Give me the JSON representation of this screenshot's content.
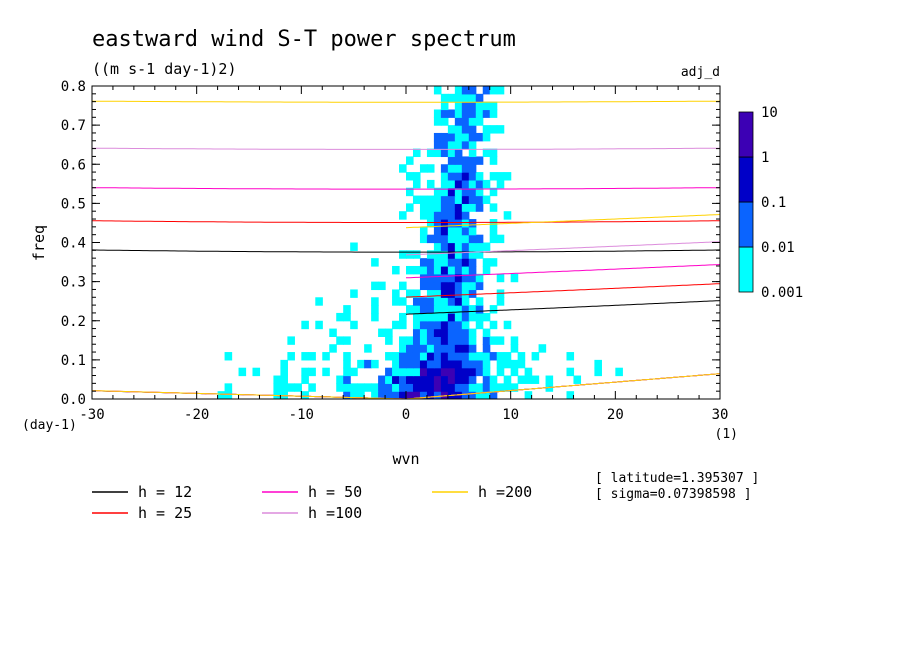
{
  "chart_data": {
    "type": "heatmap",
    "title": "eastward wind S-T power spectrum",
    "units": "((m s-1 day-1)2)",
    "run_label": "adj_d",
    "xlabel": "wvn",
    "ylabel": "freq",
    "x_unit": "(1)",
    "y_unit": "(day-1)",
    "xlim": [
      -30,
      30
    ],
    "ylim": [
      0,
      0.8
    ],
    "x_ticks": [
      -30,
      -20,
      -10,
      0,
      10,
      20,
      30
    ],
    "y_ticks": [
      0.0,
      0.1,
      0.2,
      0.3,
      0.4,
      0.5,
      0.6,
      0.7,
      0.8
    ],
    "x_tick_labels": [
      "-30",
      "-20",
      "-10",
      "0",
      "10",
      "20",
      "30"
    ],
    "y_tick_labels": [
      "0.0",
      "0.1",
      "0.2",
      "0.3",
      "0.4",
      "0.5",
      "0.6",
      "0.7",
      "0.8"
    ],
    "colorbar": {
      "levels": [
        "0.001",
        "0.01",
        "0.1",
        "1",
        "10"
      ],
      "colors": [
        "#00ffff",
        "#0a64ff",
        "#0000c8",
        "#3c00b4"
      ]
    },
    "legend": {
      "placement": "bottom",
      "entries": [
        {
          "label": "h = 12",
          "color": "#000000"
        },
        {
          "label": "h = 25",
          "color": "#ff0000"
        },
        {
          "label": "h = 50",
          "color": "#ff00c8"
        },
        {
          "label": "h =100",
          "color": "#dc8cdc"
        },
        {
          "label": "h =200",
          "color": "#ffd200"
        }
      ]
    },
    "annotations": [
      "[ latitude=1.395307 ]",
      "[ sigma=0.07398598 ]"
    ],
    "equivalent_depths_m": [
      12,
      25,
      50,
      100,
      200
    ]
  }
}
